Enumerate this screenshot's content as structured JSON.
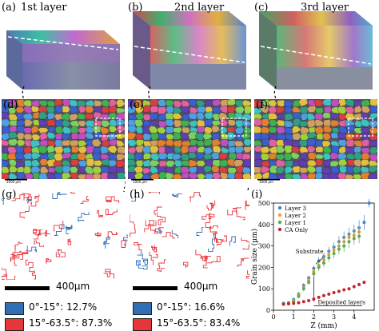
{
  "panels": {
    "a": {
      "label": "(a)",
      "title": "1st layer"
    },
    "b": {
      "label": "(b)",
      "title": "2nd layer"
    },
    "c": {
      "label": "(c)",
      "title": "3rd layer"
    },
    "d": {
      "label": "(d)",
      "scale_text": "1000 µm"
    },
    "e": {
      "label": "(e)",
      "scale_text": "1000 µm"
    },
    "f": {
      "label": "(f)",
      "scale_text": "1000 µm"
    },
    "g": {
      "label": "(g)",
      "scale_text": "400µm"
    },
    "h": {
      "label": "(h)",
      "scale_text": "400µm"
    },
    "i": {
      "label": "(i)"
    }
  },
  "misorientation_legend": {
    "g": [
      {
        "range": "0°-15°: 12.7%",
        "color": "#2e6fb6"
      },
      {
        "range": "15°-63.5°: 87.3%",
        "color": "#e8353a"
      }
    ],
    "h": [
      {
        "range": "0°-15°: 16.6%",
        "color": "#2e6fb6"
      },
      {
        "range": "15°-63.5°: 83.4%",
        "color": "#e8353a"
      }
    ]
  },
  "chart_data": {
    "type": "scatter",
    "xlabel": "Z (mm)",
    "ylabel": "Grain size (µm)",
    "xlim": [
      0,
      5
    ],
    "ylim": [
      0,
      500
    ],
    "xticks": [
      0,
      1,
      2,
      3,
      4
    ],
    "yticks": [
      0,
      100,
      200,
      300,
      400,
      500
    ],
    "legend_position": "top-left",
    "annotations": [
      "Substrate",
      "Deposited layers"
    ],
    "series": [
      {
        "name": "Layer 3",
        "color": "#3f86c7",
        "points": [
          [
            0.5,
            32
          ],
          [
            0.75,
            35
          ],
          [
            1.0,
            50
          ],
          [
            1.25,
            75
          ],
          [
            1.5,
            115
          ],
          [
            1.75,
            150
          ],
          [
            2.0,
            195
          ],
          [
            2.25,
            230
          ],
          [
            2.5,
            250
          ],
          [
            2.75,
            275
          ],
          [
            3.0,
            295
          ],
          [
            3.25,
            320
          ],
          [
            3.5,
            340
          ],
          [
            3.75,
            355
          ],
          [
            4.0,
            370
          ],
          [
            4.25,
            385
          ],
          [
            4.5,
            410
          ],
          [
            4.75,
            500
          ]
        ],
        "err": [
          5,
          6,
          8,
          10,
          12,
          12,
          15,
          18,
          20,
          20,
          22,
          25,
          28,
          30,
          30,
          35,
          35,
          20
        ]
      },
      {
        "name": "Layer 2",
        "color": "#f0a030",
        "points": [
          [
            0.5,
            30
          ],
          [
            0.75,
            33
          ],
          [
            1.0,
            45
          ],
          [
            1.25,
            70
          ],
          [
            1.5,
            105
          ],
          [
            1.75,
            140
          ],
          [
            2.0,
            180
          ],
          [
            2.25,
            210
          ],
          [
            2.5,
            235
          ],
          [
            2.75,
            260
          ],
          [
            3.0,
            280
          ],
          [
            3.25,
            300
          ],
          [
            3.5,
            320
          ],
          [
            3.75,
            340
          ],
          [
            4.0,
            350
          ],
          [
            4.25,
            365
          ]
        ],
        "err": [
          5,
          6,
          8,
          10,
          12,
          12,
          15,
          18,
          20,
          20,
          22,
          25,
          28,
          30,
          30,
          32
        ]
      },
      {
        "name": "Layer 1",
        "color": "#58a856",
        "points": [
          [
            0.5,
            30
          ],
          [
            0.75,
            32
          ],
          [
            1.0,
            40
          ],
          [
            1.25,
            65
          ],
          [
            1.5,
            100
          ],
          [
            1.75,
            130
          ],
          [
            2.0,
            170
          ],
          [
            2.25,
            200
          ],
          [
            2.5,
            220
          ],
          [
            2.75,
            245
          ],
          [
            3.0,
            265
          ],
          [
            3.25,
            285
          ],
          [
            3.5,
            300
          ],
          [
            3.75,
            320
          ],
          [
            4.0,
            335
          ],
          [
            4.25,
            345
          ]
        ],
        "err": [
          5,
          6,
          8,
          10,
          12,
          12,
          15,
          18,
          20,
          20,
          22,
          25,
          28,
          30,
          30,
          32
        ]
      },
      {
        "name": "CA Only",
        "color": "#c0282d",
        "points": [
          [
            0.5,
            28
          ],
          [
            0.75,
            30
          ],
          [
            1.0,
            32
          ],
          [
            1.25,
            35
          ],
          [
            1.5,
            40
          ],
          [
            1.75,
            45
          ],
          [
            2.0,
            52
          ],
          [
            2.25,
            60
          ],
          [
            2.5,
            68
          ],
          [
            2.75,
            75
          ],
          [
            3.0,
            82
          ],
          [
            3.25,
            88
          ],
          [
            3.5,
            95
          ],
          [
            3.75,
            100
          ],
          [
            4.0,
            110
          ],
          [
            4.25,
            120
          ],
          [
            4.5,
            130
          ]
        ],
        "err": [
          3,
          3,
          3,
          4,
          4,
          4,
          5,
          5,
          6,
          6,
          6,
          7,
          7,
          7,
          8,
          8,
          8
        ]
      }
    ]
  }
}
